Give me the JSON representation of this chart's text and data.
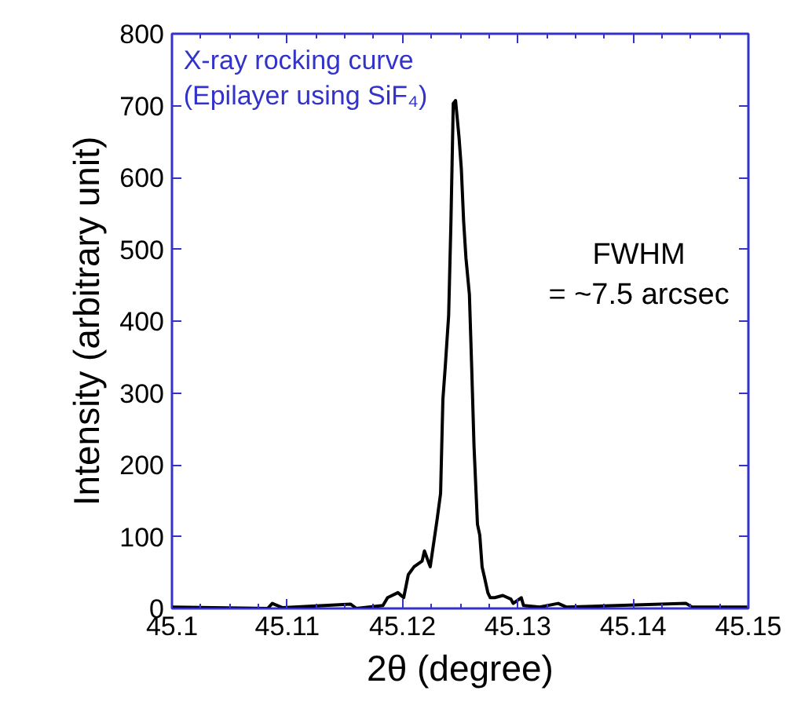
{
  "chart_data": {
    "type": "line",
    "title": "X-ray rocking curve\n(Epilayer using SiF₄)",
    "xlabel": "2θ (degree)",
    "ylabel": "Intensity (arbitrary unit)",
    "annotations": [
      "FWHM\n= ~7.5 arcsec"
    ],
    "x": [
      45.1,
      45.1083,
      45.1087,
      45.1096,
      45.1155,
      45.116,
      45.1183,
      45.1187,
      45.1196,
      45.1201,
      45.1205,
      45.121,
      45.1217,
      45.1219,
      45.1224,
      45.1228,
      45.123,
      45.1233,
      45.1235,
      45.1237,
      45.124,
      45.1242,
      45.1244,
      45.1246,
      45.1249,
      45.1251,
      45.1253,
      45.1255,
      45.1258,
      45.126,
      45.1262,
      45.1265,
      45.1267,
      45.1269,
      45.1271,
      45.1274,
      45.1276,
      45.128,
      45.1287,
      45.1294,
      45.1296,
      45.1303,
      45.1305,
      45.1319,
      45.1335,
      45.1342,
      45.1446,
      45.1451,
      45.1499
    ],
    "series": [
      {
        "color": "#000000",
        "values": [
          2,
          0,
          7,
          1,
          6,
          0,
          4,
          15,
          22,
          15,
          47,
          58,
          66,
          80,
          58,
          102,
          124,
          160,
          291,
          335,
          408,
          539,
          703,
          707,
          656,
          612,
          539,
          488,
          437,
          335,
          226,
          117,
          102,
          58,
          44,
          22,
          15,
          15,
          18,
          13,
          7,
          15,
          4,
          2,
          7,
          2,
          7,
          2,
          2
        ]
      }
    ],
    "xlim": [
      45.1,
      45.15
    ],
    "ylim": [
      0,
      800
    ],
    "xticks": [
      45.1,
      45.11,
      45.12,
      45.13,
      45.14,
      45.15
    ],
    "yticks": [
      0,
      100,
      200,
      300,
      400,
      500,
      600,
      700,
      800
    ],
    "grid": false,
    "marker": "none",
    "line_style": "solid"
  }
}
